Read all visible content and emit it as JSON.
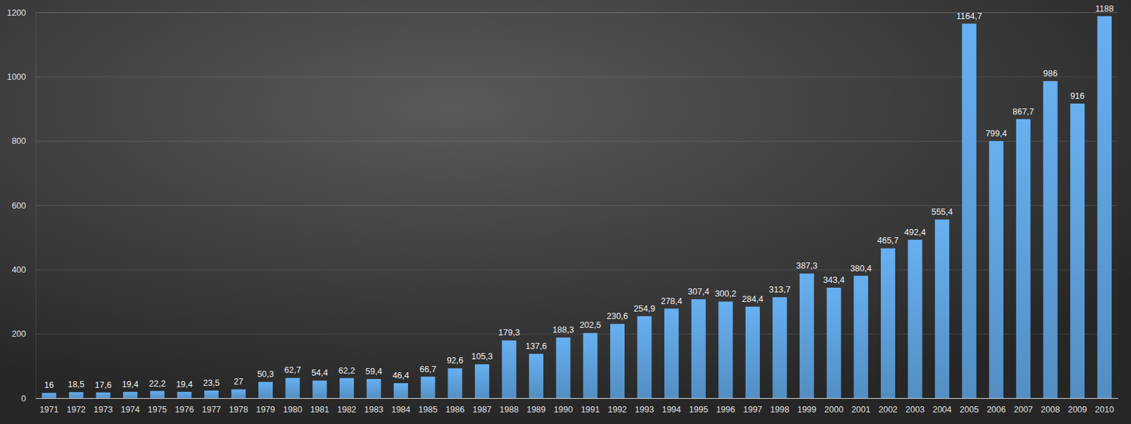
{
  "chart_data": {
    "type": "bar",
    "categories": [
      "1971",
      "1972",
      "1973",
      "1974",
      "1975",
      "1976",
      "1977",
      "1978",
      "1979",
      "1980",
      "1981",
      "1982",
      "1983",
      "1984",
      "1985",
      "1986",
      "1987",
      "1988",
      "1989",
      "1990",
      "1991",
      "1992",
      "1993",
      "1994",
      "1995",
      "1996",
      "1997",
      "1998",
      "1999",
      "2000",
      "2001",
      "2002",
      "2003",
      "2004",
      "2005",
      "2006",
      "2007",
      "2008",
      "2009",
      "2010"
    ],
    "values": [
      16,
      18.5,
      17.6,
      19.4,
      22.2,
      19.4,
      23.5,
      27,
      50.3,
      62.7,
      54.4,
      62.2,
      59.4,
      46.4,
      66.7,
      92.6,
      105.3,
      179.3,
      137.6,
      188.3,
      202.5,
      230.6,
      254.9,
      278.4,
      307.4,
      300.2,
      284.4,
      313.7,
      387.3,
      343.4,
      380.4,
      465.7,
      492.4,
      555.4,
      1164.7,
      799.4,
      867.7,
      986,
      916,
      1188
    ],
    "value_labels": [
      "16",
      "18,5",
      "17,6",
      "19,4",
      "22,2",
      "19,4",
      "23,5",
      "27",
      "50,3",
      "62,7",
      "54,4",
      "62,2",
      "59,4",
      "46,4",
      "66,7",
      "92,6",
      "105,3",
      "179,3",
      "137,6",
      "188,3",
      "202,5",
      "230,6",
      "254,9",
      "278,4",
      "307,4",
      "300,2",
      "284,4",
      "313,7",
      "387,3",
      "343,4",
      "380,4",
      "465,7",
      "492,4",
      "555,4",
      "1164,7",
      "799,4",
      "867,7",
      "986",
      "916",
      "1188"
    ],
    "color": "#5b9bd5",
    "ylim": [
      0,
      1200
    ],
    "yticks": [
      0,
      200,
      400,
      600,
      800,
      1000,
      1200
    ],
    "grid": true,
    "data_labels": true
  }
}
